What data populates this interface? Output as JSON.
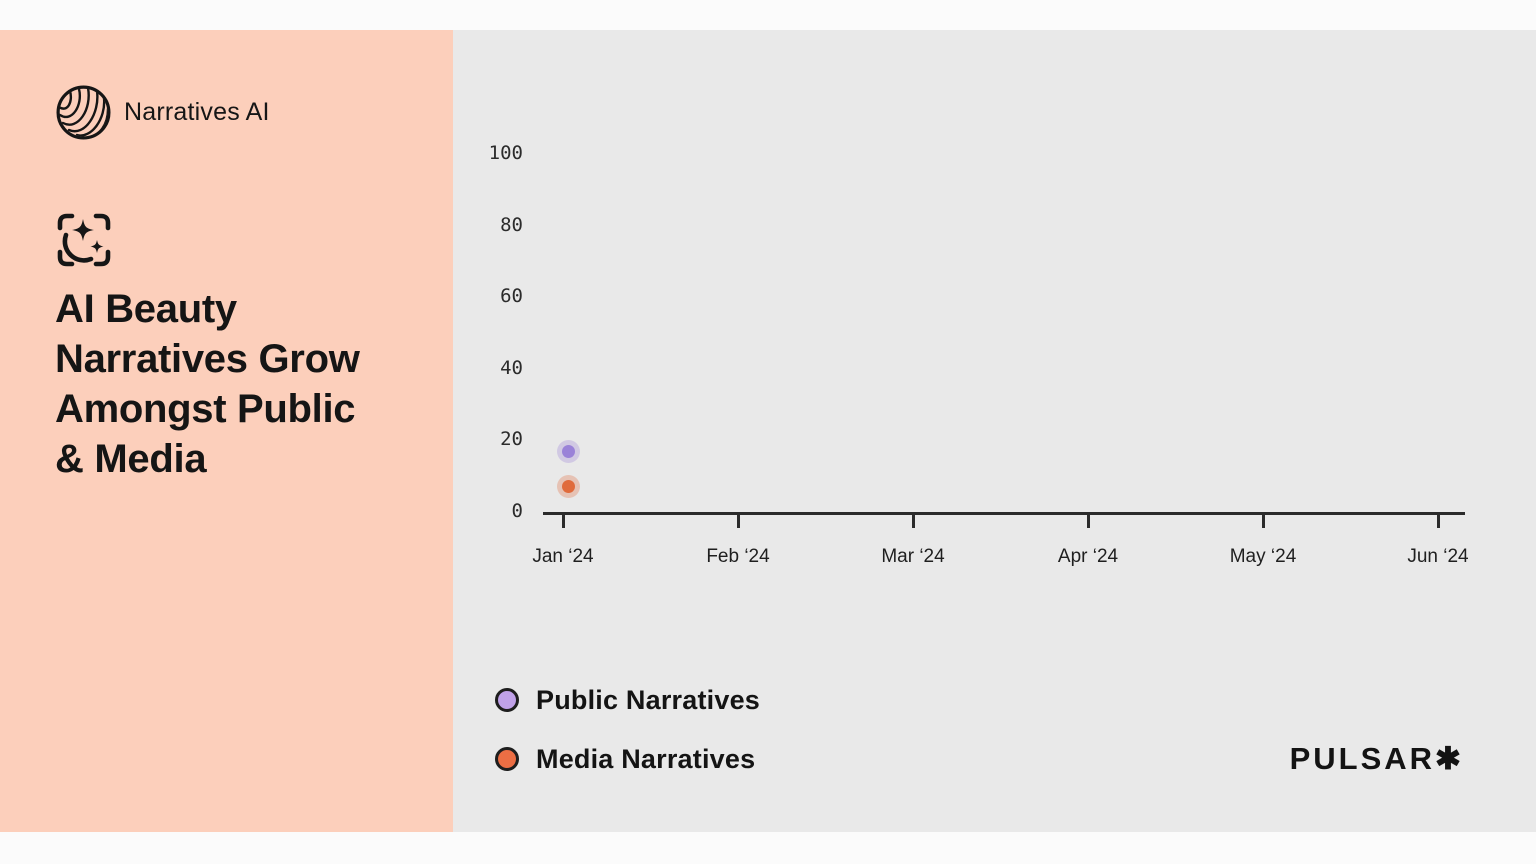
{
  "sidebar": {
    "brand_name": "Narratives AI",
    "title_lines": [
      "AI Beauty",
      "Narratives Grow",
      "Amongst Public",
      "& Media"
    ],
    "bg_color": "#fccfbb"
  },
  "chart_data": {
    "type": "scatter",
    "title": "AI Beauty Narratives Grow Amongst Public & Media",
    "x_ticks": [
      "Jan ‘24",
      "Feb ‘24",
      "Mar ‘24",
      "Apr ‘24",
      "May ‘24",
      "Jun ‘24"
    ],
    "y_ticks": [
      100,
      80,
      60,
      40,
      20,
      0
    ],
    "ylim": [
      0,
      100
    ],
    "grid": false,
    "legend_position": "bottom-left",
    "series": [
      {
        "name": "Public Narratives",
        "color": "#9a82d8",
        "halo": "rgba(154,130,216,0.30)",
        "points": [
          {
            "x": "Jan ‘24",
            "y": 17
          }
        ]
      },
      {
        "name": "Media Narratives",
        "color": "#e06b3c",
        "halo": "rgba(224,107,60,0.30)",
        "points": [
          {
            "x": "Jan ‘24",
            "y": 7
          }
        ]
      }
    ]
  },
  "legend": {
    "items": [
      {
        "label": "Public Narratives",
        "color": "#c0a1e8"
      },
      {
        "label": "Media Narratives",
        "color": "#ec6e44"
      }
    ]
  },
  "footer": {
    "brand": "PULSAR✱"
  }
}
